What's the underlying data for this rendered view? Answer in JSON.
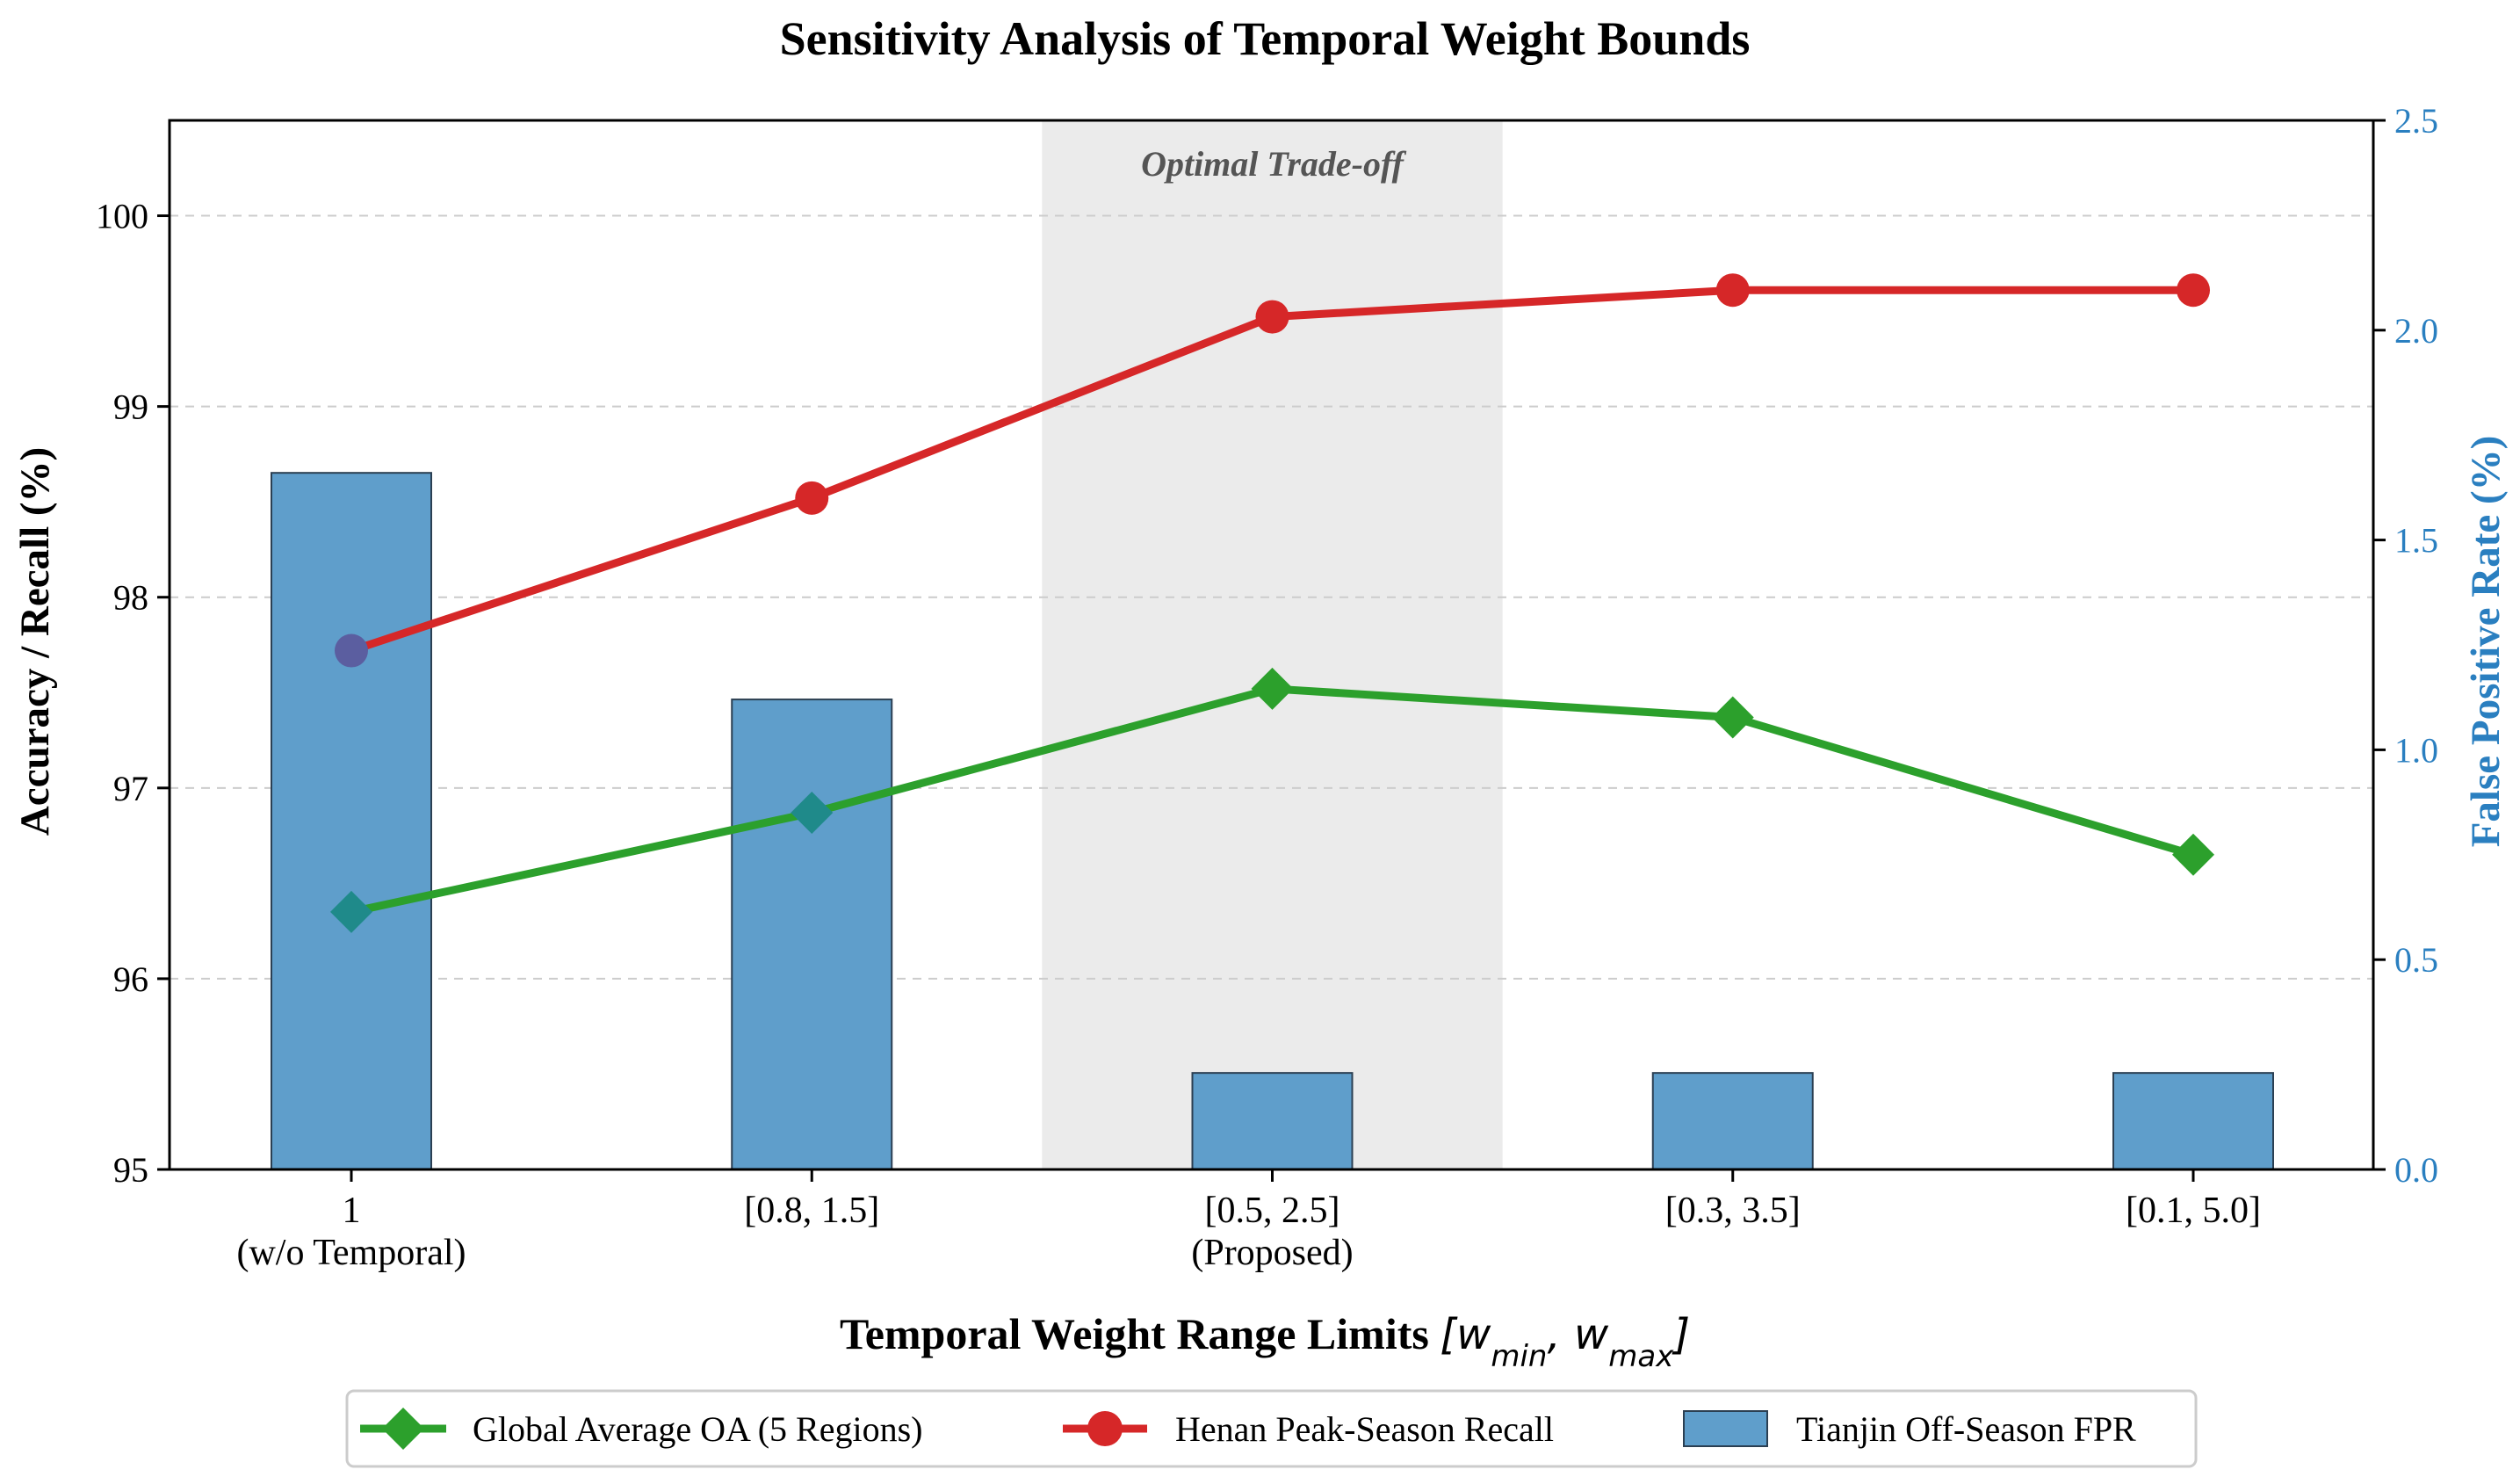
{
  "chart_data": {
    "type": "bar+line",
    "title": "Sensitivity Analysis of Temporal Weight Bounds",
    "xlabel": "Temporal Weight Range Limits",
    "xlabel_math": "[w_min, w_max]",
    "xlabel_math_parts": {
      "w": "w",
      "sub_min": "min",
      "sub_max": "max"
    },
    "ylabel_left": "Accuracy / Recall (%)",
    "ylabel_right": "False Positive Rate (%)",
    "categories": [
      {
        "line1": "1",
        "line2": "(w/o Temporal)"
      },
      {
        "line1": "[0.8, 1.5]",
        "line2": ""
      },
      {
        "line1": "[0.5, 2.5]",
        "line2": "(Proposed)"
      },
      {
        "line1": "[0.3, 3.5]",
        "line2": ""
      },
      {
        "line1": "[0.1, 5.0]",
        "line2": ""
      }
    ],
    "ylim_left": [
      95,
      100.5
    ],
    "yticks_left": [
      "95",
      "96",
      "97",
      "98",
      "99",
      "100"
    ],
    "ylim_right": [
      0,
      2.5
    ],
    "yticks_right": [
      "0.0",
      "0.5",
      "1.0",
      "1.5",
      "2.0",
      "2.5"
    ],
    "highlight": {
      "category_index": 2,
      "label": "Optimal Trade-off"
    },
    "series": [
      {
        "name": "Global Average OA (5 Regions)",
        "kind": "line",
        "marker": "diamond",
        "axis": "left",
        "color": "#2ca02c",
        "values": [
          96.35,
          96.87,
          97.52,
          97.37,
          96.65
        ]
      },
      {
        "name": "Henan Peak-Season Recall",
        "kind": "line",
        "marker": "circle",
        "axis": "left",
        "color": "#d62728",
        "values": [
          97.72,
          98.52,
          99.47,
          99.61,
          99.61
        ]
      },
      {
        "name": "Tianjin Off-Season FPR",
        "kind": "bar",
        "axis": "right",
        "color": "#5f9ecb",
        "values": [
          1.66,
          1.12,
          0.23,
          0.23,
          0.23
        ]
      }
    ],
    "colors": {
      "axis": "#000000",
      "right_axis": "#2a7fc0",
      "grid": "#cccccc",
      "highlight": "#ebebeb",
      "bar_edge": "#2b3f52",
      "overlap": "#5b5ea0"
    }
  }
}
